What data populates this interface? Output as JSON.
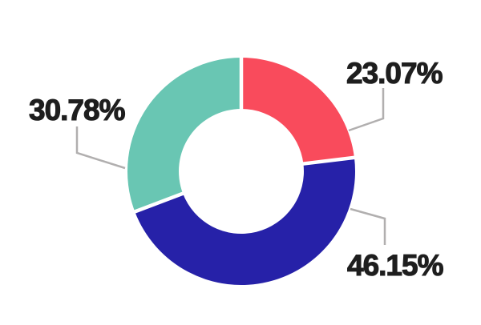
{
  "page": {
    "background_color": "#ffffff"
  },
  "chart_data": {
    "type": "pie",
    "subtype": "donut",
    "title": "",
    "legend": "none",
    "grid": false,
    "direction": "clockwise",
    "start_angle_deg": 0,
    "inner_radius_ratio": 0.55,
    "labels_outside": true,
    "slices": [
      {
        "name": "slice-red",
        "label": "23.07%",
        "value": 23.07,
        "color": "#f94b5c"
      },
      {
        "name": "slice-blue",
        "label": "46.15%",
        "value": 46.15,
        "color": "#2621a8"
      },
      {
        "name": "slice-teal",
        "label": "30.78%",
        "value": 30.78,
        "color": "#69c6b3"
      }
    ],
    "slice_gap_color": "#ffffff",
    "leader_line_color": "#b1afaf",
    "label_text_color": "#1e1e1e"
  }
}
